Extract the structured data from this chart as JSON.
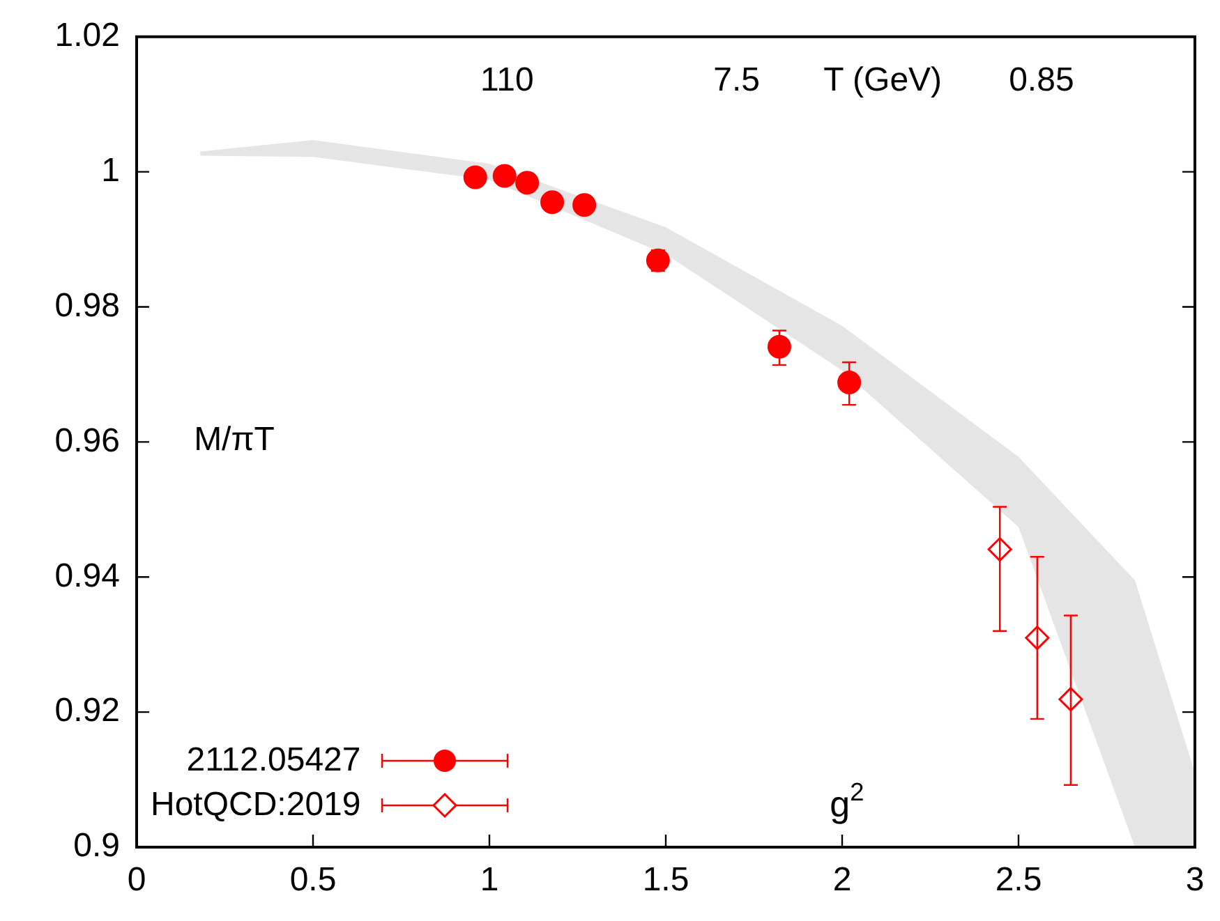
{
  "chart_data": {
    "type": "scatter",
    "xlabel": "g$^{2}$",
    "ylabel": "M/πT",
    "xlim": [
      0,
      3
    ],
    "xticks": [
      0,
      0.5,
      1,
      1.5,
      2,
      2.5,
      3
    ],
    "ylim": [
      0.9,
      1.02
    ],
    "yticks": [
      0.9,
      0.92,
      0.94,
      0.96,
      0.98,
      1,
      1.02
    ],
    "annotations": [
      "110",
      "7.5",
      "T (GeV)",
      "0.85"
    ],
    "grid": false,
    "legend": "bottom left",
    "series": [
      {
        "type": "area",
        "color": "#e5e5e5",
        "x": [
          0.18,
          0.5,
          1.0,
          1.5,
          2.0,
          2.5,
          2.83,
          3.0
        ],
        "values": [
          null,
          null,
          null,
          null,
          null,
          null,
          null,
          null
        ],
        "upper": [
          1.003,
          1.0047,
          1.0012,
          0.9918,
          0.9772,
          0.9578,
          0.9395,
          0.911
        ],
        "lower": [
          1.0024,
          1.0022,
          0.9988,
          0.9878,
          0.9706,
          0.9474,
          0.9,
          0.9
        ]
      },
      {
        "name": "2112.05427",
        "color": "#ff0000",
        "marker": "circle",
        "x": [
          0.96,
          1.043,
          1.107,
          1.178,
          1.269,
          1.478,
          1.822,
          2.02
        ],
        "values": [
          0.9992,
          0.9994,
          0.9984,
          0.9955,
          0.9951,
          0.9869,
          0.9741,
          0.9688
        ],
        "errors": [
          null,
          null,
          null,
          null,
          null,
          [
            0.9853,
            0.9884
          ],
          [
            0.9714,
            0.9765
          ],
          [
            0.9655,
            0.9718
          ]
        ]
      },
      {
        "name": "HotQCD:2019",
        "color": "#ff0000",
        "marker": "diamond",
        "x": [
          2.447,
          2.553,
          2.648
        ],
        "values": [
          0.9441,
          0.931,
          0.9219
        ],
        "errors": [
          [
            0.932,
            0.9504
          ],
          [
            0.919,
            0.943
          ],
          [
            0.9092,
            0.9343
          ]
        ]
      }
    ]
  }
}
